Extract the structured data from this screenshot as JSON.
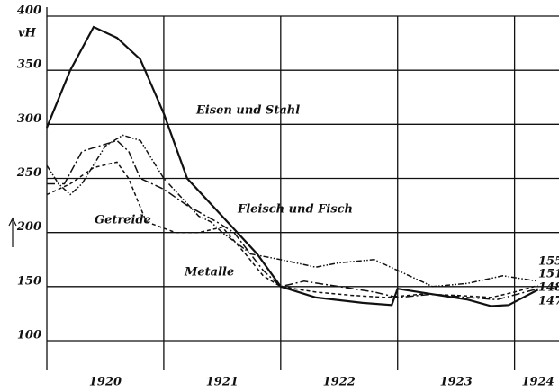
{
  "chart_data": {
    "type": "line",
    "ylabel": "vH",
    "xlim": [
      1920,
      1924.38
    ],
    "ylim": [
      100,
      400
    ],
    "yticks": [
      100,
      150,
      200,
      250,
      300,
      350,
      400
    ],
    "xticks": [
      {
        "value": 1920.5,
        "label": "1920"
      },
      {
        "value": 1921.5,
        "label": "1921"
      },
      {
        "value": 1922.5,
        "label": "1922"
      },
      {
        "value": 1923.5,
        "label": "1923"
      },
      {
        "value": 1924.2,
        "label": "1924"
      }
    ],
    "xgrid": [
      1921,
      1922,
      1923,
      1924
    ],
    "grid": true,
    "series": [
      {
        "name": "Eisen und Stahl",
        "color": "#111111",
        "dash": "none",
        "end_value": 147,
        "x": [
          1920.0,
          1920.2,
          1920.4,
          1920.6,
          1920.8,
          1921.0,
          1921.2,
          1921.5,
          1921.8,
          1922.0,
          1922.3,
          1922.7,
          1922.95,
          1923.0,
          1923.3,
          1923.6,
          1923.8,
          1923.95,
          1924.2
        ],
        "values": [
          297,
          350,
          390,
          380,
          360,
          310,
          250,
          215,
          180,
          150,
          140,
          135,
          133,
          148,
          143,
          138,
          132,
          133,
          147
        ]
      },
      {
        "name": "Getreide",
        "color": "#111111",
        "dash": "4 3",
        "end_value": 151,
        "x": [
          1920.0,
          1920.2,
          1920.4,
          1920.6,
          1920.7,
          1920.85,
          1921.1,
          1921.3,
          1921.5,
          1921.7,
          1921.85,
          1922.0,
          1922.3,
          1922.6,
          1922.9,
          1923.2,
          1923.5,
          1923.8,
          1924.0,
          1924.2
        ],
        "values": [
          235,
          245,
          260,
          265,
          250,
          210,
          200,
          200,
          205,
          180,
          160,
          150,
          145,
          142,
          140,
          143,
          142,
          140,
          145,
          151
        ]
      },
      {
        "name": "Fleisch und Fisch",
        "color": "#111111",
        "dash": "6 2 1.5 2 1.5 2",
        "end_value": 155,
        "x": [
          1920.0,
          1920.1,
          1920.2,
          1920.3,
          1920.5,
          1920.65,
          1920.8,
          1921.0,
          1921.3,
          1921.4,
          1921.5,
          1921.75,
          1922.0,
          1922.3,
          1922.5,
          1922.8,
          1923.0,
          1923.3,
          1923.6,
          1923.9,
          1924.2
        ],
        "values": [
          262,
          245,
          235,
          245,
          280,
          290,
          285,
          250,
          215,
          210,
          200,
          180,
          175,
          168,
          172,
          175,
          165,
          150,
          153,
          160,
          155
        ]
      },
      {
        "name": "Metalle",
        "color": "#111111",
        "dash": "9 3 2 3",
        "end_value": 148,
        "x": [
          1920.0,
          1920.15,
          1920.3,
          1920.45,
          1920.6,
          1920.7,
          1920.8,
          1921.0,
          1921.2,
          1921.45,
          1921.6,
          1921.85,
          1922.0,
          1922.2,
          1922.5,
          1922.8,
          1923.0,
          1923.3,
          1923.6,
          1923.85,
          1924.2
        ],
        "values": [
          245,
          245,
          275,
          280,
          285,
          275,
          250,
          240,
          225,
          210,
          200,
          165,
          150,
          155,
          150,
          145,
          140,
          143,
          140,
          138,
          148
        ]
      }
    ]
  }
}
